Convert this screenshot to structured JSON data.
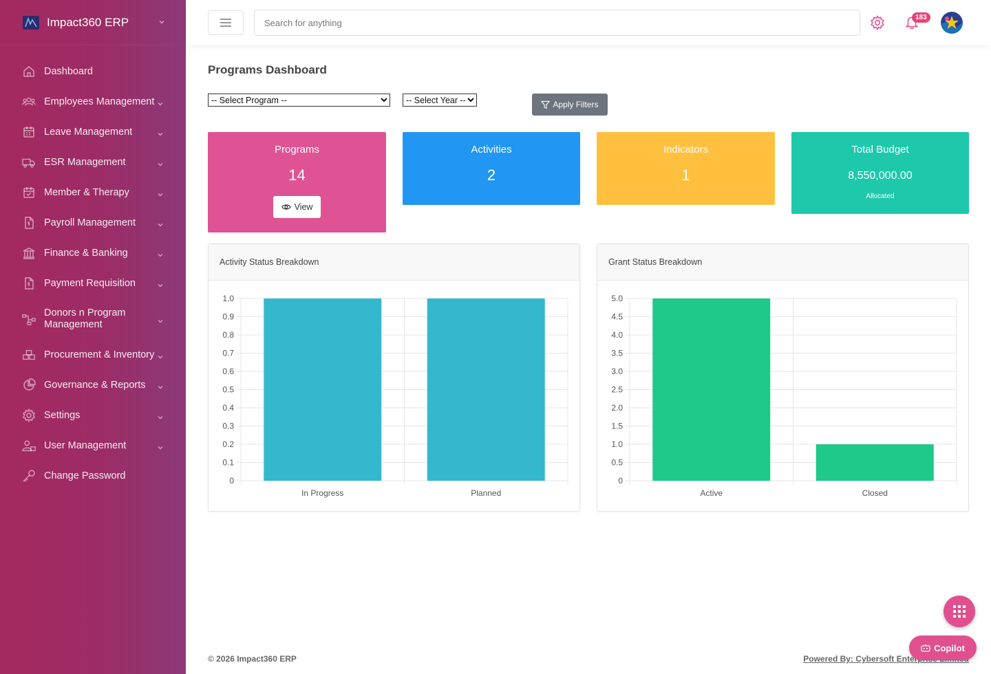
{
  "brand": {
    "name": "Impact360 ERP"
  },
  "sidebar": {
    "items": [
      {
        "label": "Dashboard",
        "icon": "home-icon"
      },
      {
        "label": "Employees Management",
        "icon": "users-icon"
      },
      {
        "label": "Leave Management",
        "icon": "calendar-icon"
      },
      {
        "label": "ESR Management",
        "icon": "truck-icon"
      },
      {
        "label": "Member & Therapy",
        "icon": "calendar-check-icon"
      },
      {
        "label": "Payroll Management",
        "icon": "payroll-file-icon"
      },
      {
        "label": "Finance & Banking",
        "icon": "bank-icon"
      },
      {
        "label": "Payment Requisition",
        "icon": "requisition-file-icon"
      },
      {
        "label": "Donors n Program Management",
        "icon": "network-icon"
      },
      {
        "label": "Procurement & Inventory",
        "icon": "boxes-icon"
      },
      {
        "label": "Governance & Reports",
        "icon": "pie-chart-icon"
      },
      {
        "label": "Settings",
        "icon": "gear-icon"
      },
      {
        "label": "User Management",
        "icon": "user-group-icon"
      },
      {
        "label": "Change Password",
        "icon": "key-icon"
      }
    ]
  },
  "topbar": {
    "search_placeholder": "Search for anything",
    "notification_count": "183"
  },
  "page": {
    "title": "Programs Dashboard"
  },
  "filters": {
    "program_selected": "-- Select Program --",
    "year_selected": "-- Select Year --",
    "apply_label": "Apply Filters"
  },
  "cards": {
    "programs": {
      "title": "Programs",
      "value": "14",
      "button": "View",
      "color": "#df5394"
    },
    "activities": {
      "title": "Activities",
      "value": "2",
      "color": "#2196f3"
    },
    "indicators": {
      "title": "Indicators",
      "value": "1",
      "color": "#ffc03f"
    },
    "budget": {
      "title": "Total Budget",
      "value": "8,550,000.00",
      "sub": "Allocated",
      "color": "#1ec8ab"
    }
  },
  "charts": {
    "activity": {
      "title": "Activity Status Breakdown"
    },
    "grant": {
      "title": "Grant Status Breakdown"
    }
  },
  "chart_data": [
    {
      "type": "bar",
      "title": "Activity Status Breakdown",
      "categories": [
        "In Progress",
        "Planned"
      ],
      "values": [
        1,
        1
      ],
      "ylim": [
        0,
        1.0
      ],
      "yticks": [
        "0",
        "0.1",
        "0.2",
        "0.3",
        "0.4",
        "0.5",
        "0.6",
        "0.7",
        "0.8",
        "0.9",
        "1.0"
      ],
      "color": "#34b8cd",
      "grid": true
    },
    {
      "type": "bar",
      "title": "Grant Status Breakdown",
      "categories": [
        "Active",
        "Closed"
      ],
      "values": [
        5,
        1
      ],
      "ylim": [
        0,
        5.0
      ],
      "yticks": [
        "0",
        "0.5",
        "1.0",
        "1.5",
        "2.0",
        "2.5",
        "3.0",
        "3.5",
        "4.0",
        "4.5",
        "5.0"
      ],
      "color": "#1ec98a",
      "grid": true
    }
  ],
  "footer": {
    "copyright": "© 2026 Impact360 ERP",
    "powered": "Powered By: Cybersoft Enterprise Limited"
  },
  "fab": {
    "copilot_label": "Copilot"
  }
}
